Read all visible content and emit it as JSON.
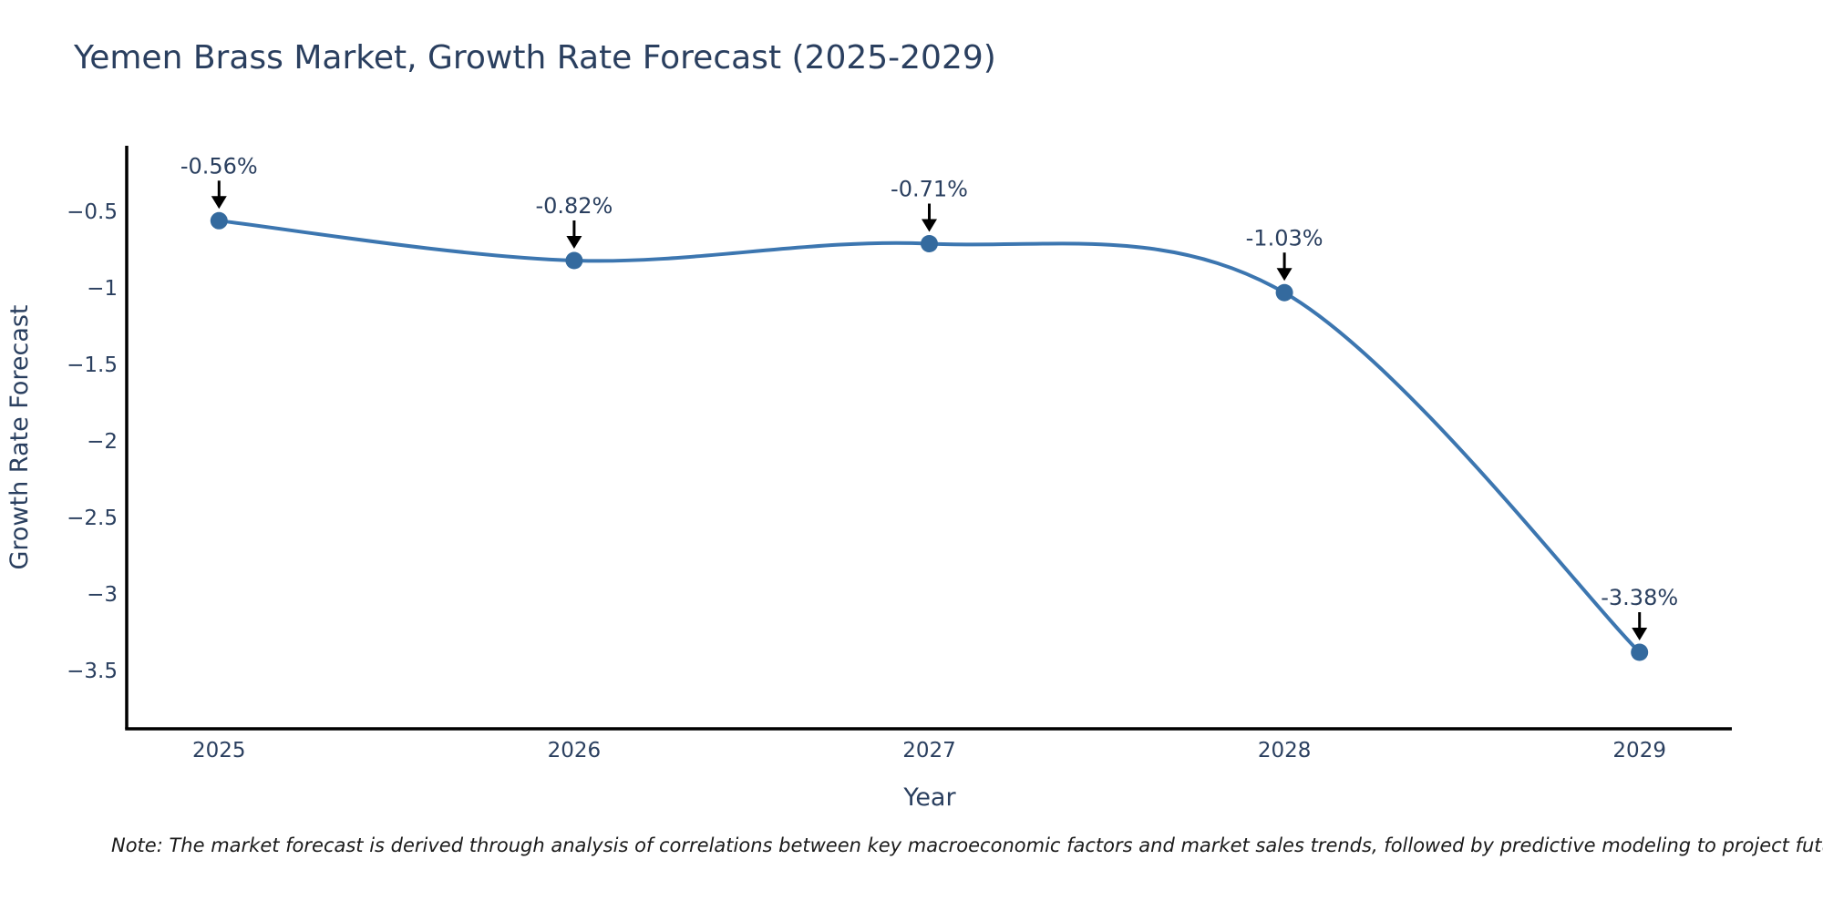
{
  "title": "Yemen Brass Market, Growth Rate Forecast (2025-2029)",
  "note": "Note: The market forecast is derived through analysis of correlations between key macroeconomic factors and market sales trends, followed by predictive modeling to project future sales",
  "chart_data": {
    "type": "line",
    "title": "Yemen Brass Market, Growth Rate Forecast (2025-2029)",
    "xlabel": "Year",
    "ylabel": "Growth Rate Forecast",
    "x": [
      2025,
      2026,
      2027,
      2028,
      2029
    ],
    "y": [
      -0.56,
      -0.82,
      -0.71,
      -1.03,
      -3.38
    ],
    "series_name": "Growth Rate Forecast",
    "point_labels": [
      "-0.56%",
      "-0.82%",
      "-0.71%",
      "-1.03%",
      "-3.38%"
    ],
    "xtick_labels": [
      "2025",
      "2026",
      "2027",
      "2028",
      "2029"
    ],
    "yticks": [
      -0.5,
      -1,
      -1.5,
      -2,
      -2.5,
      -3,
      -3.5
    ],
    "ytick_labels": [
      "−0.5",
      "−1",
      "−1.5",
      "−2",
      "−2.5",
      "−3",
      "−3.5"
    ],
    "xlim": [
      2024.74,
      2029.26
    ],
    "ylim": [
      -3.88,
      -0.07
    ],
    "line_shape": "spline",
    "grid": false,
    "legend_visible": false,
    "annotation_arrows": true,
    "colors": {
      "line": "#3c76b0",
      "marker": "#346a9e",
      "axis": "#000000",
      "arrow": "#000000",
      "text": "#2a3f5f",
      "note_text": "#1a1a1a",
      "background": "#ffffff"
    }
  }
}
